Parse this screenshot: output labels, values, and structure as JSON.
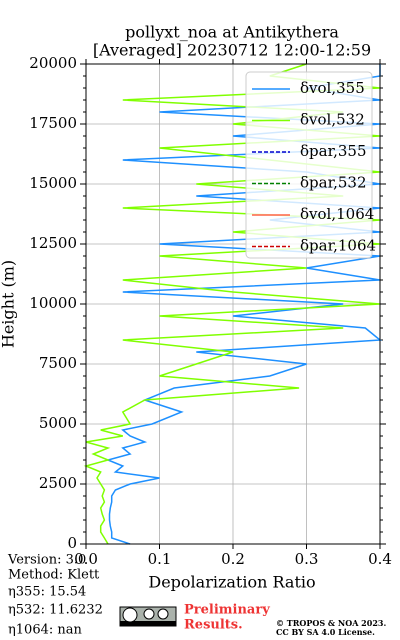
{
  "chart_data": {
    "type": "profile",
    "title": [
      "pollyxt_noa at Antikythera",
      "[Averaged] 20230712 12:00-12:59"
    ],
    "xlabel": "Depolarization Ratio",
    "ylabel": "Height (m)",
    "xlim": [
      0,
      0.4
    ],
    "xticks": [
      {
        "value": 0,
        "label": "0.0"
      },
      0.1,
      0.2,
      0.3,
      0.4
    ],
    "ylim": [
      0,
      20000
    ],
    "yticks": [
      0,
      2500,
      5000,
      7500,
      10000,
      12500,
      15000,
      17500,
      20000
    ],
    "grid": true,
    "legend": "upper right",
    "heights": [
      0,
      250,
      500,
      750,
      1000,
      1250,
      1500,
      1750,
      2000,
      2250,
      2500,
      2750,
      3000,
      3250,
      3500,
      3750,
      4000,
      4250,
      4500,
      4750,
      5000,
      5500,
      6000,
      6500,
      7000,
      7500,
      8000,
      8500,
      9000,
      9500,
      10000,
      10500,
      11000,
      11500,
      12000,
      12500,
      13000,
      13500,
      14000,
      14500,
      15000,
      15500,
      16000,
      16500,
      17000,
      17500,
      18000,
      18500,
      19000,
      19500,
      20000
    ],
    "series": [
      {
        "name": "δvol,355",
        "color": "#1e90ff",
        "linestyle": "solid",
        "values": [
          0.06,
          0.035,
          0.035,
          0.033,
          0.032,
          0.032,
          0.033,
          0.035,
          0.035,
          0.04,
          0.06,
          0.1,
          0.04,
          0.05,
          0.03,
          0.06,
          0.05,
          0.08,
          0.06,
          0.05,
          0.09,
          0.13,
          0.08,
          0.12,
          0.25,
          0.3,
          0.15,
          0.4,
          0.38,
          0.2,
          0.35,
          0.05,
          0.4,
          0.3,
          0.4,
          0.1,
          0.4,
          0.25,
          0.4,
          0.15,
          0.4,
          0.3,
          0.05,
          0.4,
          0.2,
          0.4,
          0.1,
          0.4,
          0.3,
          0.4,
          0.4
        ]
      },
      {
        "name": "δvol,532",
        "color": "#80ff00",
        "linestyle": "solid",
        "values": [
          0.03,
          0.025,
          0.02,
          0.02,
          0.025,
          0.022,
          0.02,
          0.025,
          0.022,
          0.025,
          0.02,
          0.015,
          0.02,
          0.0,
          0.03,
          0.01,
          0.03,
          0.0,
          0.05,
          0.02,
          0.06,
          0.05,
          0.08,
          0.29,
          0.1,
          0.15,
          0.2,
          0.05,
          0.35,
          0.1,
          0.4,
          0.2,
          0.05,
          0.3,
          0.1,
          0.4,
          0.2,
          0.4,
          0.05,
          0.35,
          0.15,
          0.4,
          0.25,
          0.1,
          0.4,
          0.2,
          0.35,
          0.05,
          0.4,
          0.25,
          0.3
        ]
      },
      {
        "name": "δpar,355",
        "color": "#0000cd",
        "linestyle": "dashed",
        "values": [
          null,
          null,
          null,
          null,
          null,
          null,
          null,
          null,
          null,
          null,
          null,
          null,
          null,
          null,
          null,
          null,
          null,
          null,
          null,
          null,
          null,
          null,
          null,
          null,
          null,
          null,
          null,
          null,
          null,
          null,
          null,
          null,
          null,
          null,
          null,
          null,
          null,
          null,
          null,
          null,
          null,
          null,
          null,
          null,
          null,
          null,
          null,
          null,
          null,
          null,
          null
        ]
      },
      {
        "name": "δpar,532",
        "color": "#008000",
        "linestyle": "dashed",
        "values": [
          null,
          null,
          null,
          null,
          null,
          null,
          null,
          null,
          null,
          null,
          null,
          null,
          null,
          null,
          null,
          null,
          null,
          null,
          null,
          null,
          null,
          null,
          null,
          null,
          null,
          null,
          null,
          null,
          null,
          null,
          null,
          null,
          null,
          null,
          null,
          null,
          null,
          null,
          null,
          null,
          null,
          null,
          null,
          null,
          null,
          null,
          null,
          null,
          null,
          null,
          null
        ]
      },
      {
        "name": "δvol,1064",
        "color": "#ff6347",
        "linestyle": "solid",
        "values": [
          null,
          null,
          null,
          null,
          null,
          null,
          null,
          null,
          null,
          null,
          null,
          null,
          null,
          null,
          null,
          null,
          null,
          null,
          null,
          null,
          null,
          null,
          null,
          null,
          null,
          null,
          null,
          null,
          null,
          null,
          null,
          null,
          null,
          null,
          null,
          null,
          null,
          null,
          null,
          null,
          null,
          null,
          null,
          null,
          null,
          null,
          null,
          null,
          null,
          null,
          null
        ]
      },
      {
        "name": "δpar,1064",
        "color": "#cc0000",
        "linestyle": "dashed",
        "values": [
          null,
          null,
          null,
          null,
          null,
          null,
          null,
          null,
          null,
          null,
          null,
          null,
          null,
          null,
          null,
          null,
          null,
          null,
          null,
          null,
          null,
          null,
          null,
          null,
          null,
          null,
          null,
          null,
          null,
          null,
          null,
          null,
          null,
          null,
          null,
          null,
          null,
          null,
          null,
          null,
          null,
          null,
          null,
          null,
          null,
          null,
          null,
          null,
          null,
          null,
          null
        ]
      }
    ]
  },
  "footer": {
    "info": [
      "Version: 3.0",
      "Method: Klett",
      "η355:  15.54",
      "η532: 11.6232",
      "η1064:    nan"
    ],
    "preliminary": [
      "Preliminary",
      "Results."
    ],
    "copyright": [
      "© TROPOS & NOA 2023.",
      "CC BY SA 4.0 License."
    ]
  }
}
